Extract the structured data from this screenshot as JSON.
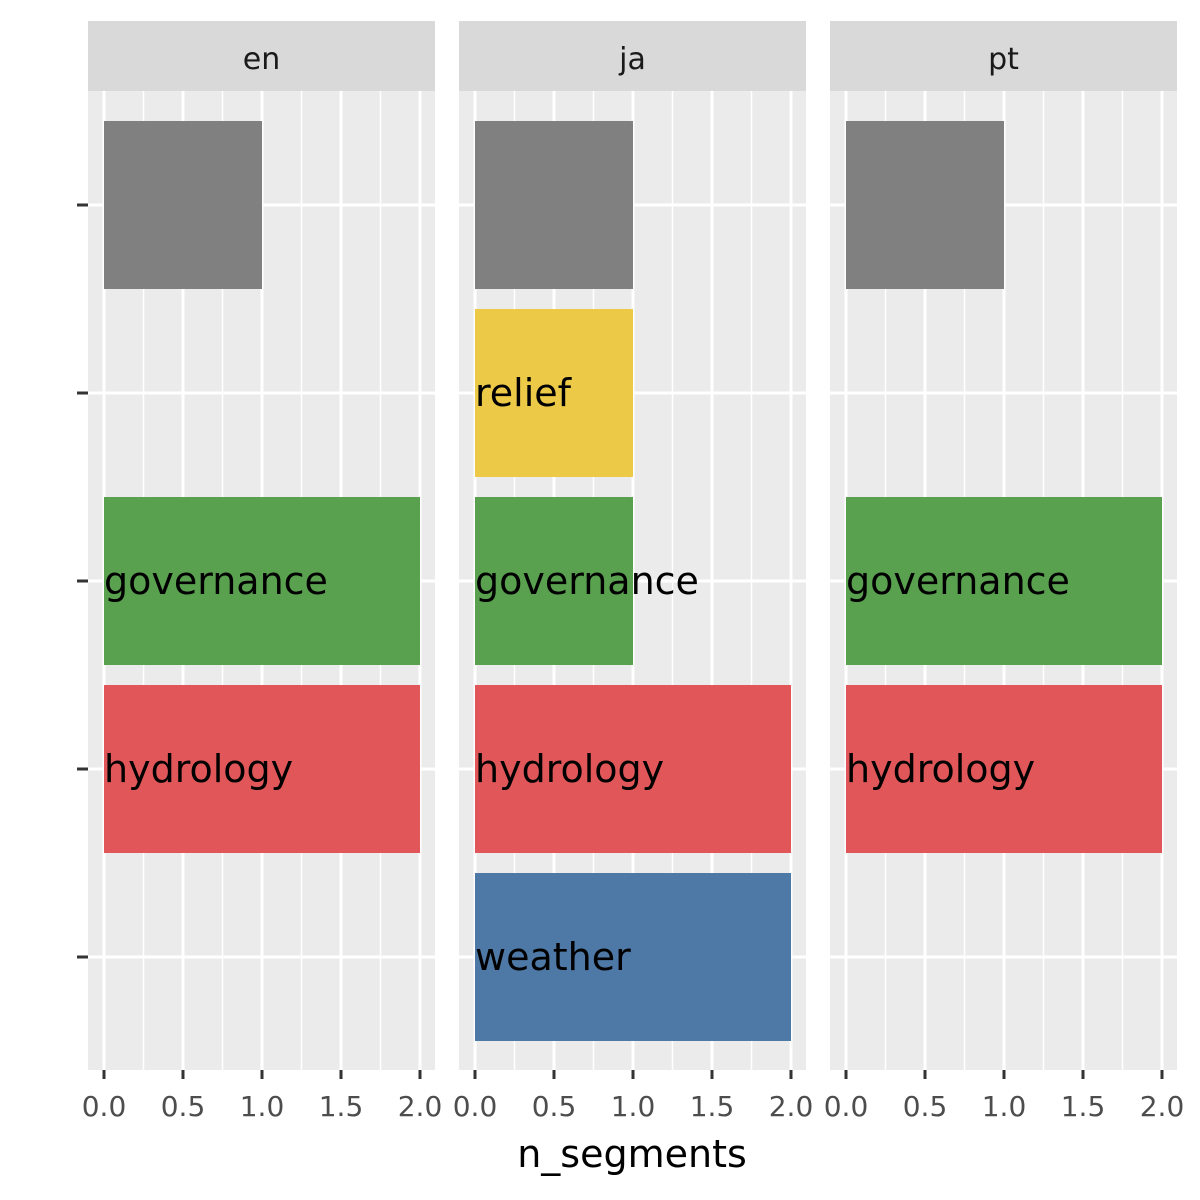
{
  "chart_data": {
    "type": "bar",
    "orientation": "horizontal",
    "facet_variable": "language",
    "facets": [
      "en",
      "ja",
      "pt"
    ],
    "categories": [
      "",
      "relief",
      "governance",
      "hydrology",
      "weather"
    ],
    "category_colors": {
      "": "#808080",
      "relief": "#EDC948",
      "governance": "#59A14F",
      "hydrology": "#E15759",
      "weather": "#4E79A7"
    },
    "values": {
      "en": {
        "": 1,
        "governance": 2,
        "hydrology": 2
      },
      "ja": {
        "": 1,
        "relief": 1,
        "governance": 1,
        "hydrology": 2,
        "weather": 2
      },
      "pt": {
        "": 1,
        "governance": 2,
        "hydrology": 2
      }
    },
    "xlabel": "n_segments",
    "ylabel": "",
    "xlim": [
      0,
      2
    ],
    "x_ticks": [
      "0.0",
      "0.5",
      "1.0",
      "1.5",
      "2.0"
    ],
    "grid": true,
    "legend": "none",
    "panel_background": "#EBEBEB",
    "strip_background": "#D9D9D9"
  }
}
